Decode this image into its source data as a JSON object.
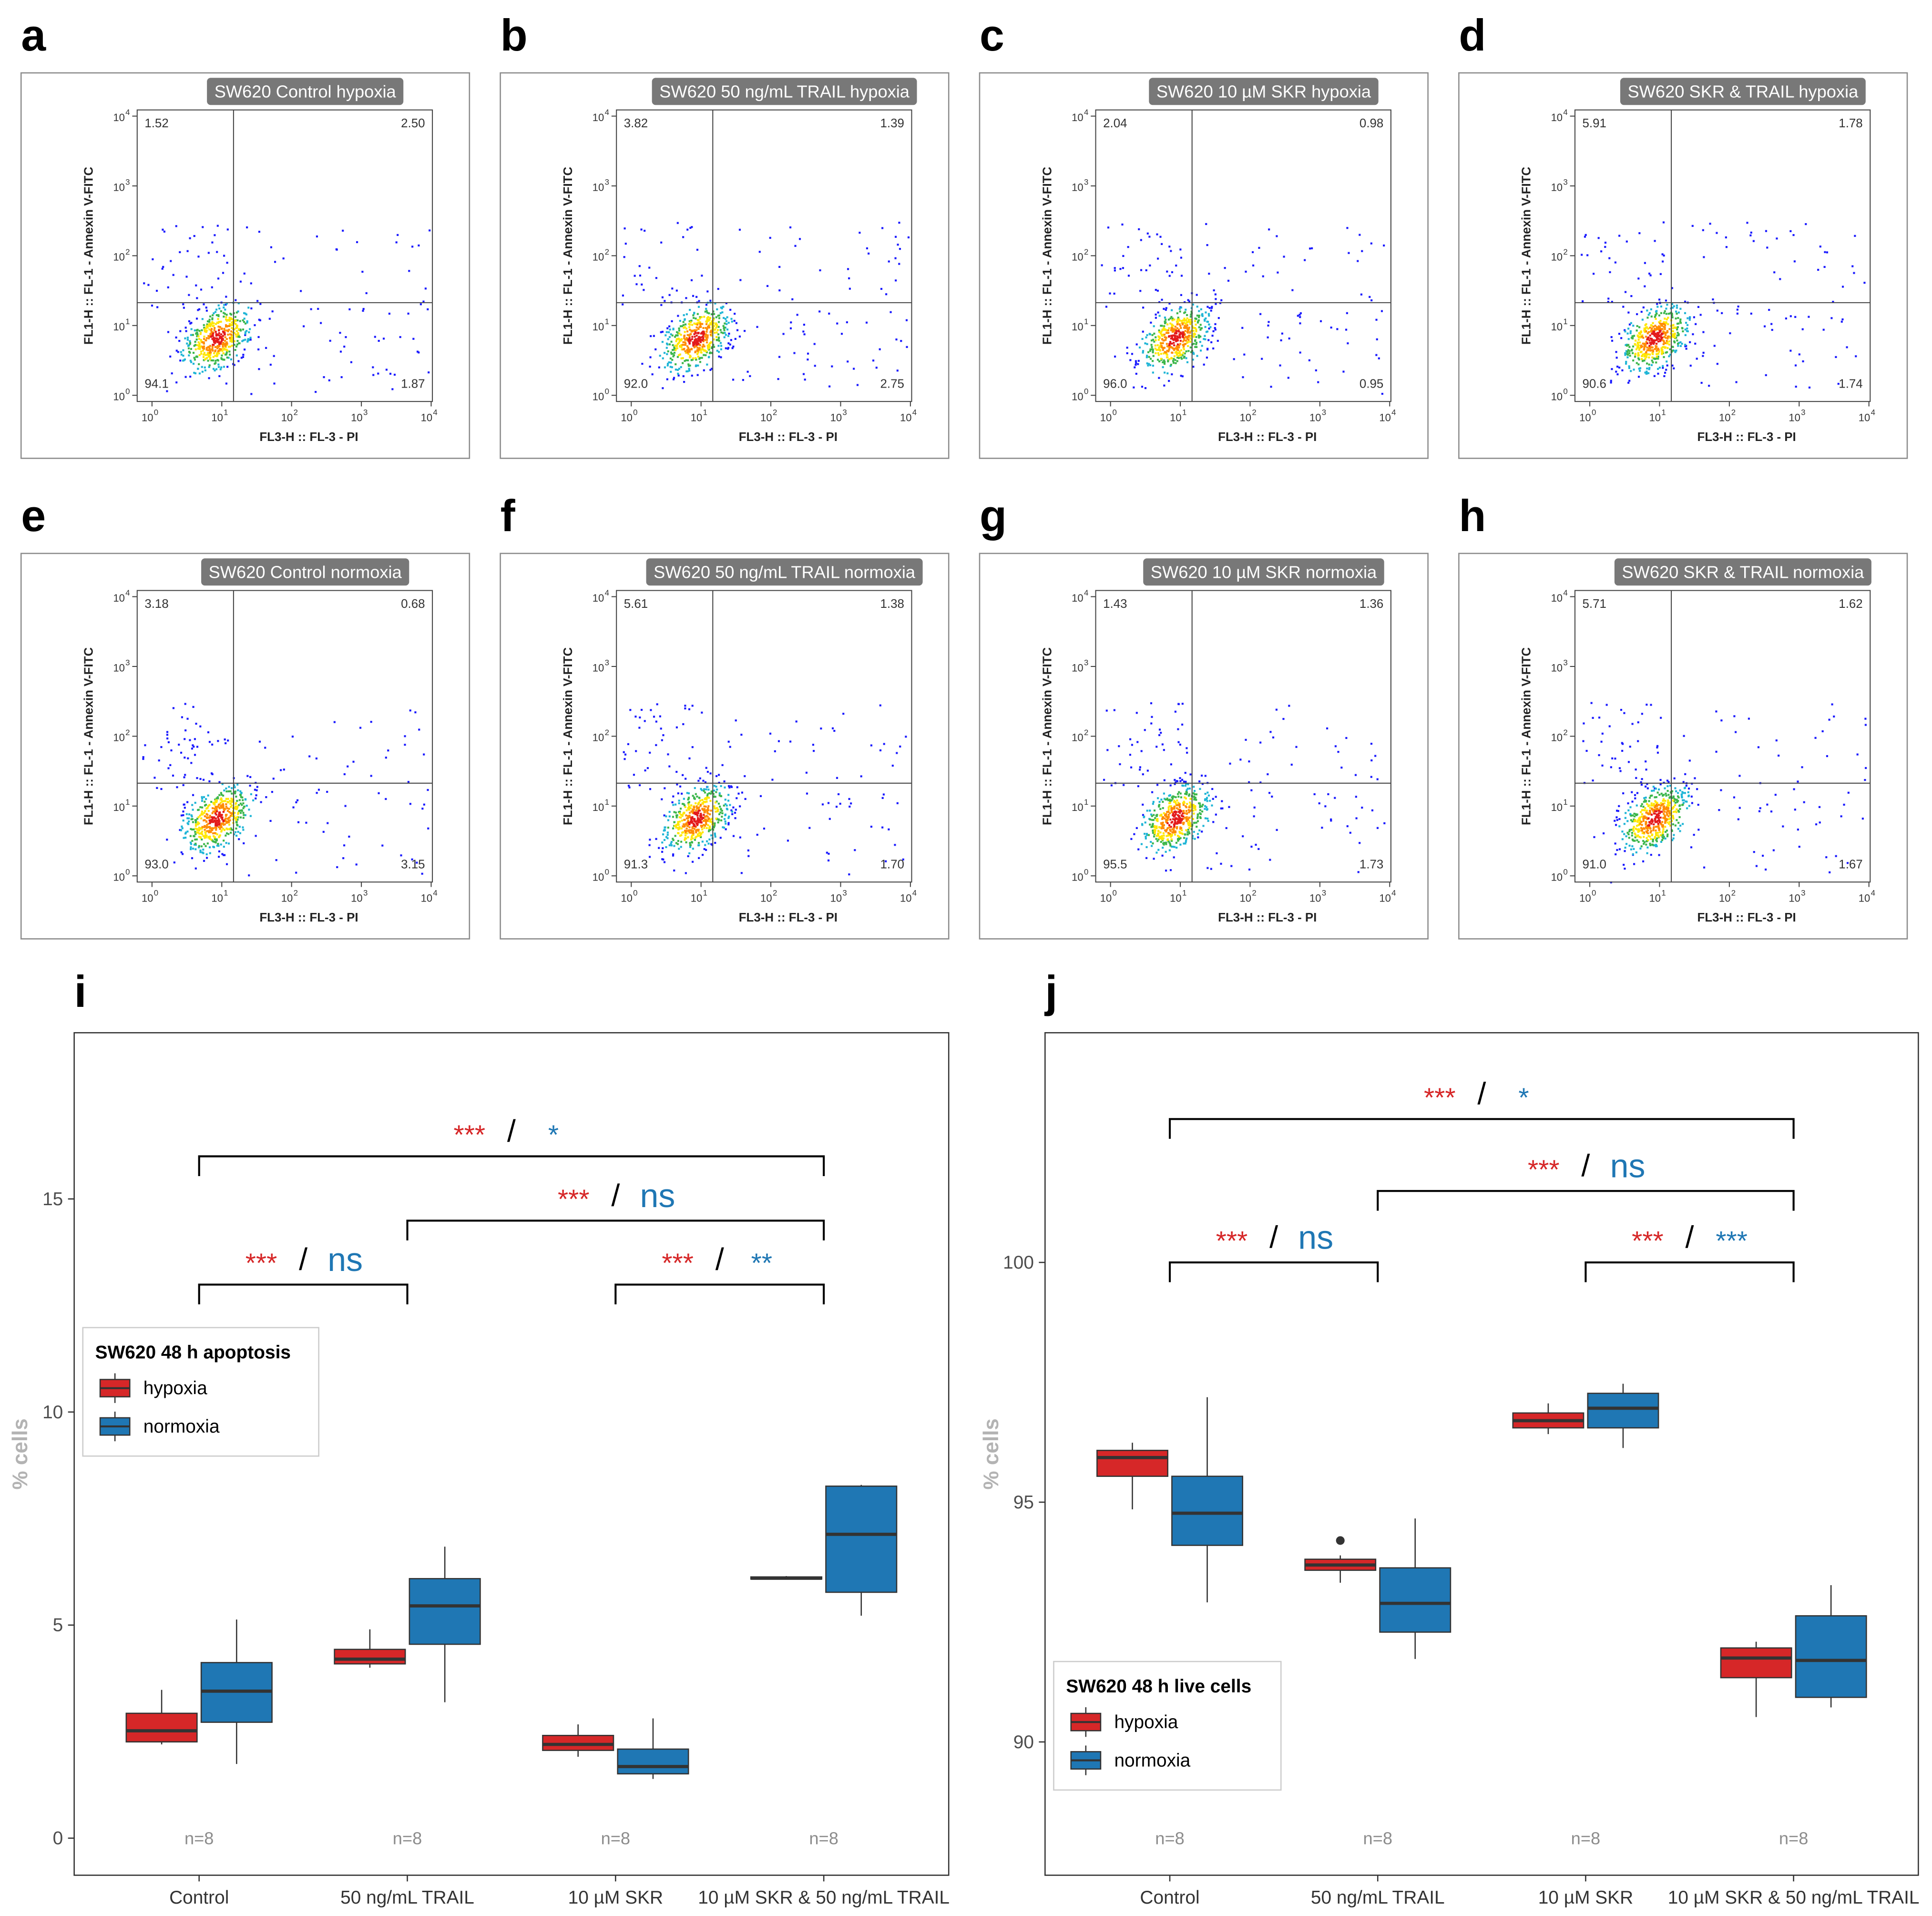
{
  "flow_panels": {
    "x_axis_label": "FL3-H :: FL-3 - PI",
    "y_axis_label": "FL1-H :: FL-1 - Annexin V-FITC",
    "tick_base": "10",
    "tick_exponents": [
      "0",
      "1",
      "2",
      "3",
      "4"
    ],
    "panels": [
      {
        "letter": "a",
        "title": "SW620 Control hypoxia",
        "upper_left": "1.52",
        "upper_right": "2.50",
        "lower_left": "94.1",
        "lower_right": "1.87"
      },
      {
        "letter": "b",
        "title": "SW620 50 ng/mL TRAIL hypoxia",
        "upper_left": "3.82",
        "upper_right": "1.39",
        "lower_left": "92.0",
        "lower_right": "2.75"
      },
      {
        "letter": "c",
        "title": "SW620 10 µM SKR hypoxia",
        "upper_left": "2.04",
        "upper_right": "0.98",
        "lower_left": "96.0",
        "lower_right": "0.95"
      },
      {
        "letter": "d",
        "title": "SW620 SKR & TRAIL hypoxia",
        "upper_left": "5.91",
        "upper_right": "1.78",
        "lower_left": "90.6",
        "lower_right": "1.74"
      },
      {
        "letter": "e",
        "title": "SW620 Control normoxia",
        "upper_left": "3.18",
        "upper_right": "0.68",
        "lower_left": "93.0",
        "lower_right": "3.15"
      },
      {
        "letter": "f",
        "title": "SW620 50 ng/mL TRAIL normoxia",
        "upper_left": "5.61",
        "upper_right": "1.38",
        "lower_left": "91.3",
        "lower_right": "1.70"
      },
      {
        "letter": "g",
        "title": "SW620 10 µM SKR normoxia",
        "upper_left": "1.43",
        "upper_right": "1.36",
        "lower_left": "95.5",
        "lower_right": "1.73"
      },
      {
        "letter": "h",
        "title": "SW620 SKR & TRAIL normoxia",
        "upper_left": "5.71",
        "upper_right": "1.62",
        "lower_left": "91.0",
        "lower_right": "1.67"
      }
    ]
  },
  "chart_data": [
    {
      "type": "box",
      "panel_label": "i",
      "y_label": "% cells",
      "legend_title": "SW620 48 h apoptosis",
      "legend": "left",
      "categories": [
        "Control",
        "50 ng/mL TRAIL",
        "10 µM SKR",
        "10 µM SKR & 50 ng/mL TRAIL"
      ],
      "n_labels": [
        "n=8",
        "n=8",
        "n=8",
        "n=8"
      ],
      "ylim": [
        -0.87,
        18.9
      ],
      "yticks": [
        0,
        5,
        10,
        15
      ],
      "grid": false,
      "separator": "/",
      "series": [
        {
          "name": "hypoxia",
          "color": "#d62728",
          "values": [
            {
              "min": 2.2,
              "q1": 2.26,
              "median": 2.52,
              "q3": 2.93,
              "max": 3.48
            },
            {
              "min": 4.0,
              "q1": 4.09,
              "median": 4.2,
              "q3": 4.43,
              "max": 4.9
            },
            {
              "min": 1.91,
              "q1": 2.06,
              "median": 2.2,
              "q3": 2.41,
              "max": 2.67
            },
            {
              "min": 6.08,
              "q1": 6.08,
              "median": 6.1,
              "q3": 6.13,
              "max": 6.15
            }
          ]
        },
        {
          "name": "normoxia",
          "color": "#1f77b4",
          "values": [
            {
              "min": 1.74,
              "q1": 2.72,
              "median": 3.45,
              "q3": 4.12,
              "max": 5.13
            },
            {
              "min": 3.19,
              "q1": 4.55,
              "median": 5.45,
              "q3": 6.09,
              "max": 6.84
            },
            {
              "min": 1.39,
              "q1": 1.51,
              "median": 1.68,
              "q3": 2.09,
              "max": 2.81
            },
            {
              "min": 5.22,
              "q1": 5.77,
              "median": 7.13,
              "q3": 8.26,
              "max": 8.29
            }
          ]
        }
      ],
      "comparisons": [
        {
          "groups": [
            "Control",
            "50 ng/mL TRAIL"
          ],
          "y": 12.99,
          "hypoxia": "***",
          "normoxia": "ns"
        },
        {
          "groups": [
            "10 µM SKR",
            "10 µM SKR & 50 ng/mL TRAIL"
          ],
          "y": 12.99,
          "hypoxia": "***",
          "normoxia": "**"
        },
        {
          "groups": [
            "50 ng/mL TRAIL",
            "10 µM SKR & 50 ng/mL TRAIL"
          ],
          "y": 14.49,
          "hypoxia": "***",
          "normoxia": "ns"
        },
        {
          "groups": [
            "Control",
            "10 µM SKR & 50 ng/mL TRAIL"
          ],
          "y": 16.0,
          "hypoxia": "***",
          "normoxia": "*"
        }
      ]
    },
    {
      "type": "box",
      "panel_label": "j",
      "y_label": "% cells",
      "legend_title": "SW620 48 h live cells",
      "legend": "lower left",
      "categories": [
        "Control",
        "50 ng/mL TRAIL",
        "10 µM SKR",
        "10 µM SKR & 50 ng/mL TRAIL"
      ],
      "n_labels": [
        "n=8",
        "n=8",
        "n=8",
        "n=8"
      ],
      "ylim": [
        87.22,
        104.79
      ],
      "yticks": [
        90,
        95,
        100
      ],
      "grid": false,
      "separator": "/",
      "series": [
        {
          "name": "hypoxia",
          "color": "#d62728",
          "values": [
            {
              "min": 94.85,
              "q1": 95.54,
              "median": 95.93,
              "q3": 96.08,
              "max": 96.24
            },
            {
              "min": 93.32,
              "q1": 93.58,
              "median": 93.69,
              "q3": 93.81,
              "max": 93.89,
              "outliers": [
                94.2
              ]
            },
            {
              "min": 96.42,
              "q1": 96.55,
              "median": 96.7,
              "q3": 96.86,
              "max": 97.06
            },
            {
              "min": 90.52,
              "q1": 91.34,
              "median": 91.75,
              "q3": 91.96,
              "max": 92.09
            }
          ]
        },
        {
          "name": "normoxia",
          "color": "#1f77b4",
          "values": [
            {
              "min": 92.91,
              "q1": 94.1,
              "median": 94.77,
              "q3": 95.54,
              "max": 97.19
            },
            {
              "min": 91.73,
              "q1": 92.29,
              "median": 92.89,
              "q3": 93.63,
              "max": 94.66
            },
            {
              "min": 96.13,
              "q1": 96.55,
              "median": 96.96,
              "q3": 97.27,
              "max": 97.47
            },
            {
              "min": 90.72,
              "q1": 90.93,
              "median": 91.7,
              "q3": 92.63,
              "max": 93.27
            }
          ]
        }
      ],
      "comparisons": [
        {
          "groups": [
            "Control",
            "50 ng/mL TRAIL"
          ],
          "y": 100.0,
          "hypoxia": "***",
          "normoxia": "ns"
        },
        {
          "groups": [
            "10 µM SKR",
            "10 µM SKR & 50 ng/mL TRAIL"
          ],
          "y": 100.0,
          "hypoxia": "***",
          "normoxia": "***"
        },
        {
          "groups": [
            "50 ng/mL TRAIL",
            "10 µM SKR & 50 ng/mL TRAIL"
          ],
          "y": 101.49,
          "hypoxia": "***",
          "normoxia": "ns"
        },
        {
          "groups": [
            "Control",
            "10 µM SKR & 50 ng/mL TRAIL"
          ],
          "y": 102.99,
          "hypoxia": "***",
          "normoxia": "*"
        }
      ]
    }
  ]
}
